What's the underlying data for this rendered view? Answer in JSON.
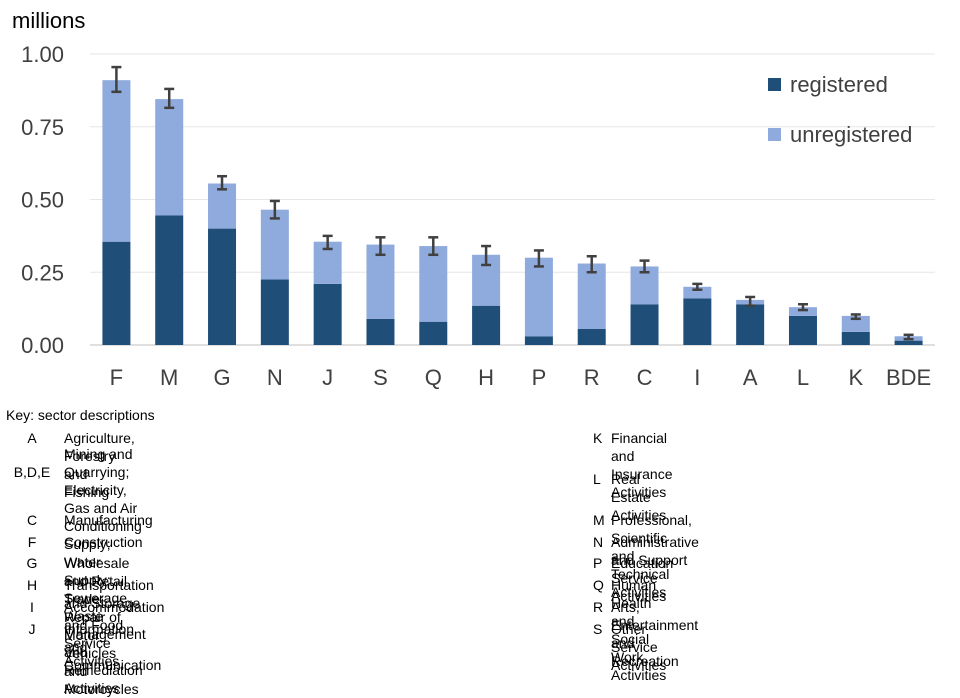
{
  "chart_data": {
    "type": "bar",
    "stacked": true,
    "ylabel": "millions",
    "ylim": [
      0,
      1.0
    ],
    "yticks": [
      "0.00",
      "0.25",
      "0.50",
      "0.75",
      "1.00"
    ],
    "ytick_values": [
      0,
      0.25,
      0.5,
      0.75,
      1.0
    ],
    "categories": [
      "F",
      "M",
      "G",
      "N",
      "J",
      "S",
      "Q",
      "H",
      "P",
      "R",
      "C",
      "I",
      "A",
      "L",
      "K",
      "BDE"
    ],
    "series": [
      {
        "name": "registered",
        "color": "#1f4e79",
        "values": [
          0.355,
          0.445,
          0.4,
          0.225,
          0.21,
          0.09,
          0.08,
          0.135,
          0.03,
          0.055,
          0.14,
          0.16,
          0.14,
          0.1,
          0.045,
          0.015
        ]
      },
      {
        "name": "unregistered",
        "color": "#8faadc",
        "values": [
          0.555,
          0.4,
          0.155,
          0.24,
          0.145,
          0.255,
          0.26,
          0.175,
          0.27,
          0.225,
          0.13,
          0.04,
          0.015,
          0.03,
          0.055,
          0.015
        ]
      }
    ],
    "error_bars": [
      [
        0.87,
        0.955
      ],
      [
        0.815,
        0.88
      ],
      [
        0.535,
        0.58
      ],
      [
        0.435,
        0.495
      ],
      [
        0.33,
        0.375
      ],
      [
        0.31,
        0.37
      ],
      [
        0.31,
        0.37
      ],
      [
        0.275,
        0.34
      ],
      [
        0.27,
        0.325
      ],
      [
        0.25,
        0.305
      ],
      [
        0.25,
        0.29
      ],
      [
        0.19,
        0.21
      ],
      [
        0.135,
        0.165
      ],
      [
        0.12,
        0.14
      ],
      [
        0.09,
        0.105
      ],
      [
        0.02,
        0.035
      ]
    ],
    "error_bar_color": "#404040",
    "grid": true,
    "legend_position": "top-right"
  },
  "key": {
    "title": "Key: sector descriptions",
    "left": [
      {
        "code": "A",
        "desc": "Agriculture, Forestry and Fishing"
      },
      {
        "code": "B,D,E",
        "desc": "Mining and Quarrying; Electricity, Gas and Air\nConditioning Supply; Water Supply; Sewerage,\nWaste Management and Remediation Activities"
      },
      {
        "code": "C",
        "desc": "Manufacturing"
      },
      {
        "code": "F",
        "desc": "Construction"
      },
      {
        "code": "G",
        "desc": "Wholesale and Retail Trade; Repair of Motor Vehicles and Motorcycles"
      },
      {
        "code": "H",
        "desc": "Transportation and Storage"
      },
      {
        "code": "I",
        "desc": "Accommodation and Food Service Activities"
      },
      {
        "code": "J",
        "desc": "Information and Communication"
      }
    ],
    "right": [
      {
        "code": "K",
        "desc": "Financial and Insurance Activities"
      },
      {
        "code": "L",
        "desc": "Real Estate Activities"
      },
      {
        "code": "M",
        "desc": "Professional, Scientific and Technical Activities"
      },
      {
        "code": "N",
        "desc": "Administrative and Support Service Activities"
      },
      {
        "code": "P",
        "desc": "Education"
      },
      {
        "code": "Q",
        "desc": "Human Health and Social Work Activities"
      },
      {
        "code": "R",
        "desc": "Arts, Entertainment and Recreation"
      },
      {
        "code": "S",
        "desc": "Other Service Activities"
      }
    ]
  }
}
